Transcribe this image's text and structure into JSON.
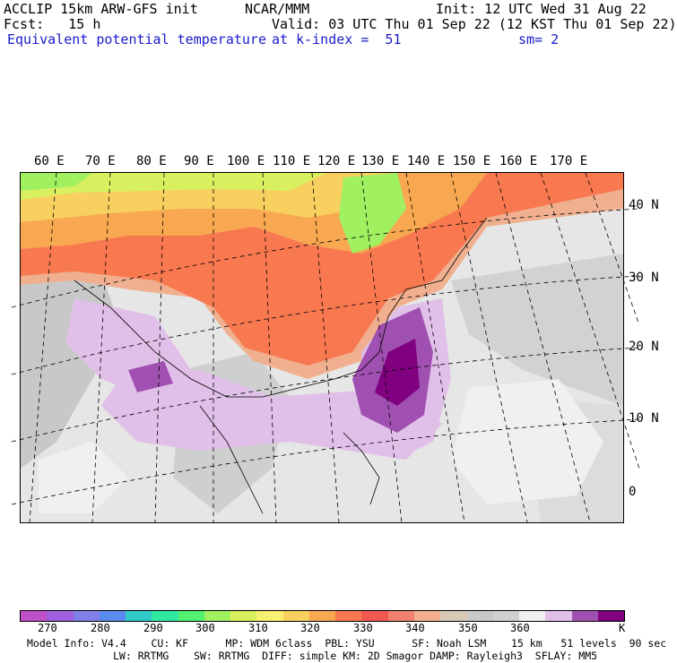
{
  "header": {
    "line1_left": "ACCLIP 15km ARW-GFS init",
    "line1_mid": "NCAR/MMM",
    "line1_right": "Init: 12 UTC Wed 31 Aug 22",
    "line2_left": "Fcst:   15 h",
    "line2_right": "Valid: 03 UTC Thu 01 Sep 22 (12 KST Thu 01 Sep 22)",
    "line3_left": "Equivalent potential temperature",
    "line3_mid": "at k-index =  51",
    "line3_right": "sm= 2"
  },
  "map": {
    "lon_labels": [
      "60 E",
      "70 E",
      "80 E",
      "90 E",
      "100 E",
      "110 E",
      "120 E",
      "130 E",
      "140 E",
      "150 E",
      "160 E",
      "170 E"
    ],
    "lat_labels": [
      "40 N",
      "30 N",
      "20 N",
      "10 N",
      "0"
    ]
  },
  "colorbar": {
    "colors": [
      "#c050c8",
      "#a060e0",
      "#8080e8",
      "#5a8cf0",
      "#30c8c8",
      "#30e8a0",
      "#50f070",
      "#a0f060",
      "#d8f060",
      "#f8f070",
      "#f8d060",
      "#f8a850",
      "#f87850",
      "#f05850",
      "#f08070",
      "#f0b090",
      "#d8c8b8",
      "#c8c8c8",
      "#d0d0d0",
      "#f0f0f0",
      "#e0c0e8",
      "#a050b0",
      "#800080"
    ],
    "tick_labels": [
      "270",
      "280",
      "290",
      "300",
      "310",
      "320",
      "330",
      "340",
      "350",
      "360"
    ],
    "unit": "K"
  },
  "footer": {
    "line1": "Model Info: V4.4    CU: KF      MP: WDM 6class  PBL: YSU      SF: Noah LSM    15 km   51 levels  90 sec",
    "line2": "LW: RRTMG    SW: RRTMG  DIFF: simple KM: 2D Smagor DAMP: Rayleigh3  SFLAY: MM5"
  }
}
